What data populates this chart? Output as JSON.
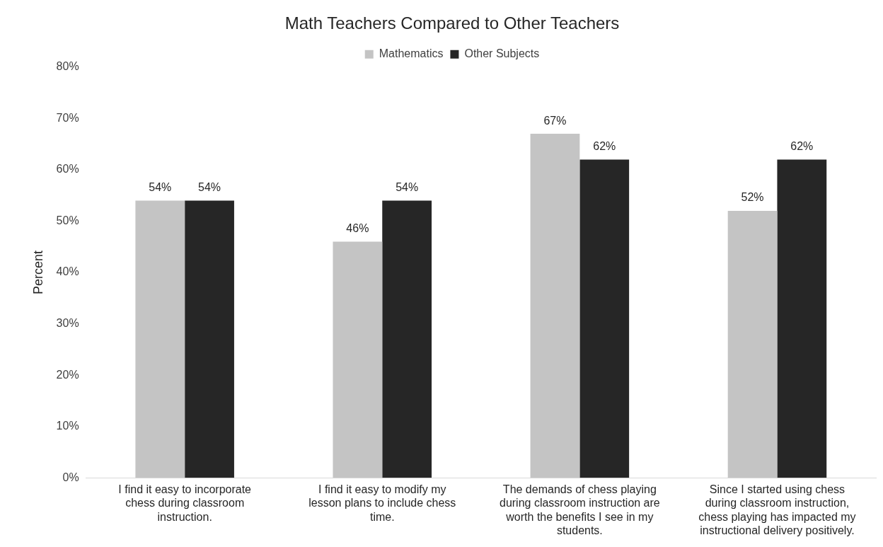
{
  "chart_data": {
    "type": "bar",
    "title": "Math Teachers Compared to Other Teachers",
    "ylabel": "Percent",
    "categories": [
      "I find it easy to incorporate chess during classroom instruction.",
      "I find it easy to modify my lesson plans to include chess time.",
      "The demands of chess playing during classroom instruction are worth the benefits I see in my students.",
      "Since I started using chess during classroom instruction, chess playing has impacted my instructional delivery positively."
    ],
    "series": [
      {
        "name": "Mathematics",
        "color": "#c4c4c4",
        "values": [
          54,
          46,
          67,
          52
        ],
        "value_labels": [
          "54%",
          "46%",
          "67%",
          "52%"
        ]
      },
      {
        "name": "Other Subjects",
        "color": "#262626",
        "values": [
          54,
          54,
          62,
          62
        ],
        "value_labels": [
          "54%",
          "54%",
          "62%",
          "62%"
        ]
      }
    ],
    "ylim": [
      0,
      80
    ],
    "yticks": [
      {
        "value": 0,
        "label": "0%"
      },
      {
        "value": 10,
        "label": "10%"
      },
      {
        "value": 20,
        "label": "20%"
      },
      {
        "value": 30,
        "label": "30%"
      },
      {
        "value": 40,
        "label": "40%"
      },
      {
        "value": 50,
        "label": "50%"
      },
      {
        "value": 60,
        "label": "60%"
      },
      {
        "value": 70,
        "label": "70%"
      },
      {
        "value": 80,
        "label": "80%"
      }
    ],
    "grid": false,
    "legend": "top"
  }
}
